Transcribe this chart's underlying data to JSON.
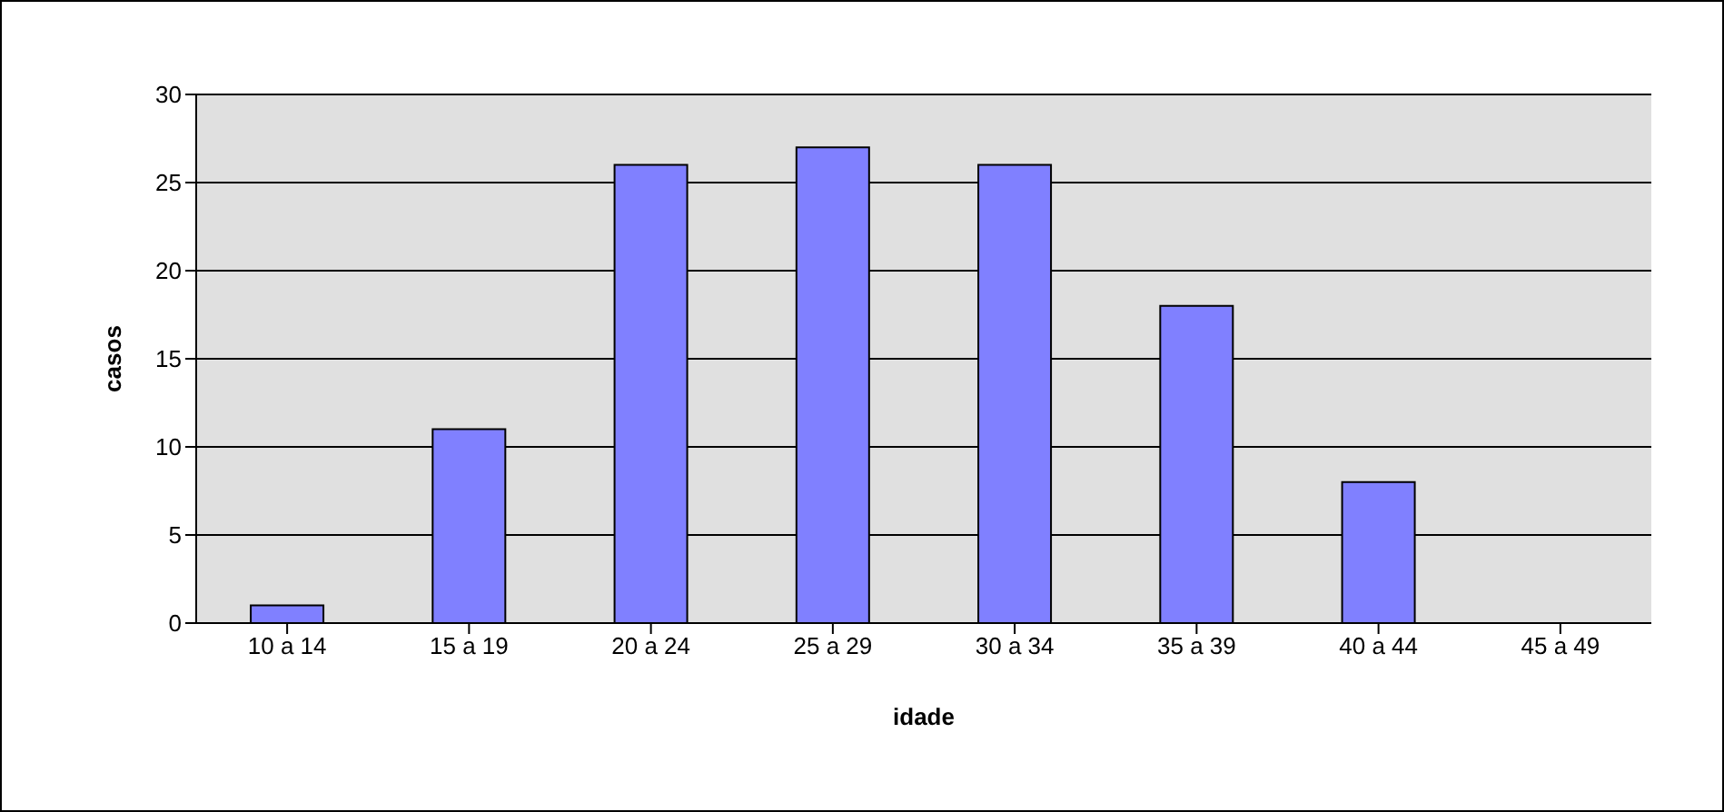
{
  "chart_data": {
    "type": "bar",
    "xlabel": "idade",
    "ylabel": "casos",
    "categories": [
      "10 a 14",
      "15 a 19",
      "20 a 24",
      "25 a 29",
      "30 a 34",
      "35 a 39",
      "40 a 44",
      "45 a 49"
    ],
    "values": [
      1,
      11,
      26,
      27,
      26,
      18,
      8,
      0
    ],
    "color": "#8080ff",
    "ylim": [
      0,
      30
    ],
    "yticks": [
      0,
      5,
      10,
      15,
      20,
      25,
      30
    ],
    "grid": "y"
  }
}
